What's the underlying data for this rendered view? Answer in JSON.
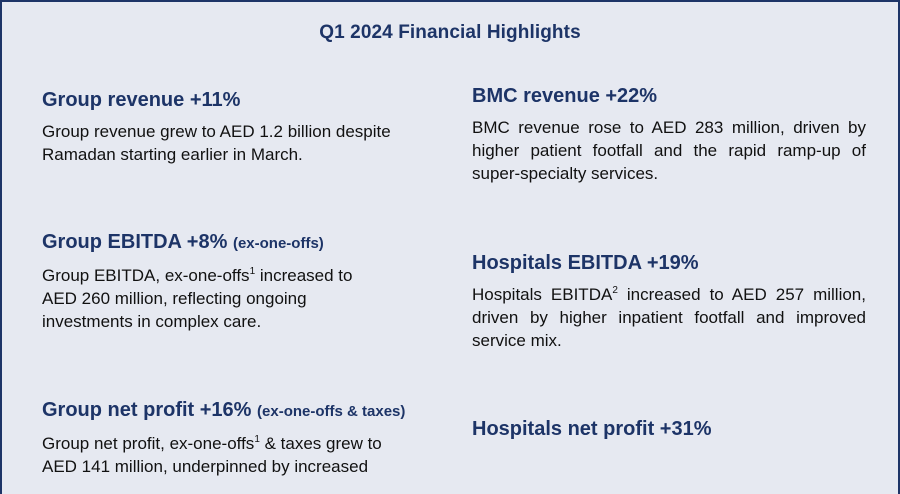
{
  "title": "Q1 2024 Financial Highlights",
  "left": [
    {
      "heading": "Group revenue +11%",
      "qualifier": "",
      "lines": [
        {
          "pre": "Group revenue grew to AED 1.2 billion  despite",
          "sup": "",
          "post": ""
        },
        {
          "pre": "Ramadan starting earlier in March.",
          "sup": "",
          "post": ""
        }
      ]
    },
    {
      "heading": "Group EBITDA +8%",
      "qualifier": "(ex-one-offs)",
      "lines": [
        {
          "pre": "Group EBITDA, ex-one-offs",
          "sup": "1",
          "post": " increased to"
        },
        {
          "pre": "AED 260 million, reflecting ongoing",
          "sup": "",
          "post": ""
        },
        {
          "pre": "investments in complex care.",
          "sup": "",
          "post": ""
        }
      ]
    },
    {
      "heading": "Group net profit +16%",
      "qualifier": "(ex-one-offs & taxes)",
      "lines": [
        {
          "pre": "Group net profit, ex-one-offs",
          "sup": "1",
          "post": " & taxes grew to"
        },
        {
          "pre": "AED 141 million, underpinned by increased",
          "sup": "",
          "post": ""
        }
      ]
    }
  ],
  "right": [
    {
      "heading": "BMC revenue +22%",
      "body_pre": "BMC revenue rose to AED 283 million, driven by higher patient footfall and the rapid ramp-up of super-specialty services.",
      "body_sup": "",
      "body_post": ""
    },
    {
      "heading": "Hospitals EBITDA +19%",
      "body_pre": "Hospitals EBITDA",
      "body_sup": "2",
      "body_post": " increased to AED 257 million, driven by higher inpatient footfall and improved service mix."
    },
    {
      "heading": "Hospitals net profit +31%",
      "body_pre": "",
      "body_sup": "",
      "body_post": ""
    }
  ],
  "colors": {
    "background": "#e6e9f1",
    "heading": "#1d3467",
    "border": "#1d3467",
    "body": "#111111"
  }
}
